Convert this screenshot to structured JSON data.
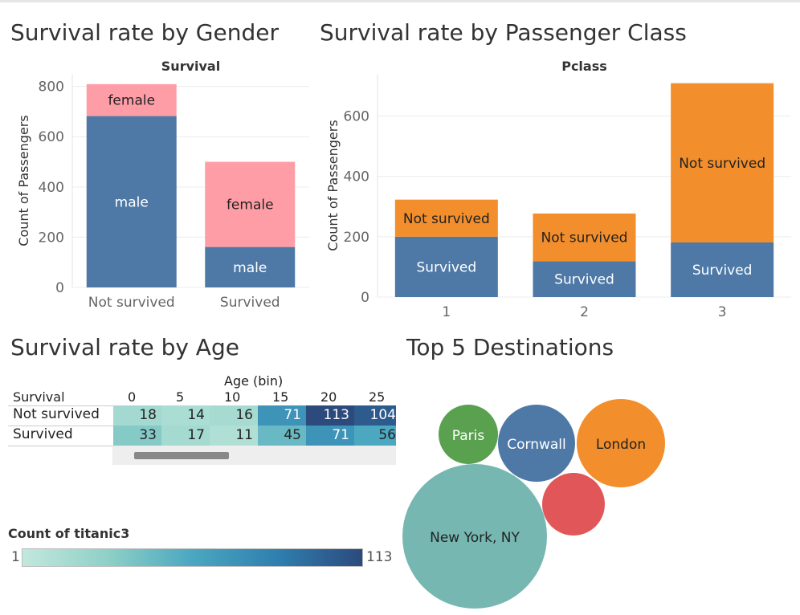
{
  "titles": {
    "gender": "Survival rate by Gender",
    "pclass": "Survival rate by Passenger Class",
    "age": "Survival rate by Age",
    "dest": "Top 5 Destinations"
  },
  "chart_data": [
    {
      "id": "gender",
      "type": "bar",
      "stacked": true,
      "header": "Survival",
      "ylabel": "Count of Passengers",
      "categories": [
        "Not survived",
        "Survived"
      ],
      "yticks": [
        0,
        200,
        400,
        600,
        800
      ],
      "ylim": [
        0,
        850
      ],
      "series": [
        {
          "name": "male",
          "color": "#4e79a7",
          "values": [
            682,
            161
          ]
        },
        {
          "name": "female",
          "color": "#ff9da7",
          "values": [
            127,
            339
          ]
        }
      ]
    },
    {
      "id": "pclass",
      "type": "bar",
      "stacked": true,
      "header": "Pclass",
      "ylabel": "Count of Passengers",
      "categories": [
        "1",
        "2",
        "3"
      ],
      "yticks": [
        0,
        200,
        400,
        600
      ],
      "ylim": [
        0,
        740
      ],
      "series": [
        {
          "name": "Survived",
          "color": "#4e79a7",
          "values": [
            200,
            119,
            181
          ]
        },
        {
          "name": "Not survived",
          "color": "#f28e2b",
          "values": [
            123,
            158,
            528
          ]
        }
      ]
    },
    {
      "id": "age",
      "type": "heatmap",
      "xlabel": "Age (bin)",
      "row_header": "Survival",
      "columns": [
        "0",
        "5",
        "10",
        "15",
        "20",
        "25"
      ],
      "rows": [
        {
          "label": "Not survived",
          "values": [
            18,
            14,
            16,
            71,
            113,
            104
          ]
        },
        {
          "label": "Survived",
          "values": [
            33,
            17,
            11,
            45,
            71,
            56
          ]
        }
      ],
      "legend_title": "Count of titanic3",
      "legend_min": "1",
      "legend_max": "113",
      "color_range": [
        "#c2e8dd",
        "#2c4a7c"
      ]
    },
    {
      "id": "dest",
      "type": "bubble",
      "bubbles": [
        {
          "label": "New York, NY",
          "color": "#76b7b2",
          "value": 100
        },
        {
          "label": "London",
          "color": "#f28e2b",
          "value": 37
        },
        {
          "label": "Cornwall",
          "color": "#4e79a7",
          "value": 29
        },
        {
          "label": "Paris",
          "color": "#59a14f",
          "value": 17
        },
        {
          "label": "",
          "color": "#e15759",
          "value": 19
        }
      ]
    }
  ]
}
